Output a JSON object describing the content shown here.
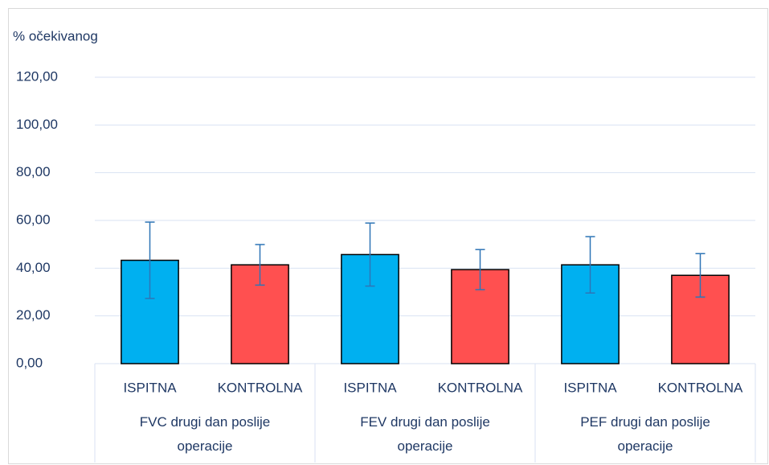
{
  "chart_data": {
    "type": "bar",
    "y_axis_title": "% očekivanog",
    "categories": [
      "ISPITNA",
      "KONTROLNA",
      "ISPITNA",
      "KONTROLNA",
      "ISPITNA",
      "KONTROLNA"
    ],
    "groups": [
      "FVC drugi dan poslije operacije",
      "FEV drugi dan poslije operacije",
      "PEF drugi dan poslije operacije"
    ],
    "values": [
      43.3,
      41.4,
      45.7,
      39.4,
      41.4,
      37.0
    ],
    "errors": [
      16.0,
      8.5,
      13.2,
      8.4,
      11.8,
      9.1
    ],
    "colors": [
      "#00b0f0",
      "#ff5050",
      "#00b0f0",
      "#ff5050",
      "#00b0f0",
      "#ff5050"
    ],
    "error_color": "#2e75b6",
    "ylim": [
      0,
      120
    ],
    "yticks": [
      {
        "value": 0,
        "label": "0,00"
      },
      {
        "value": 20,
        "label": "20,00"
      },
      {
        "value": 40,
        "label": "40,00"
      },
      {
        "value": 60,
        "label": "60,00"
      },
      {
        "value": 80,
        "label": "80,00"
      },
      {
        "value": 100,
        "label": "100,00"
      },
      {
        "value": 120,
        "label": "120,00"
      }
    ],
    "grid": true
  }
}
